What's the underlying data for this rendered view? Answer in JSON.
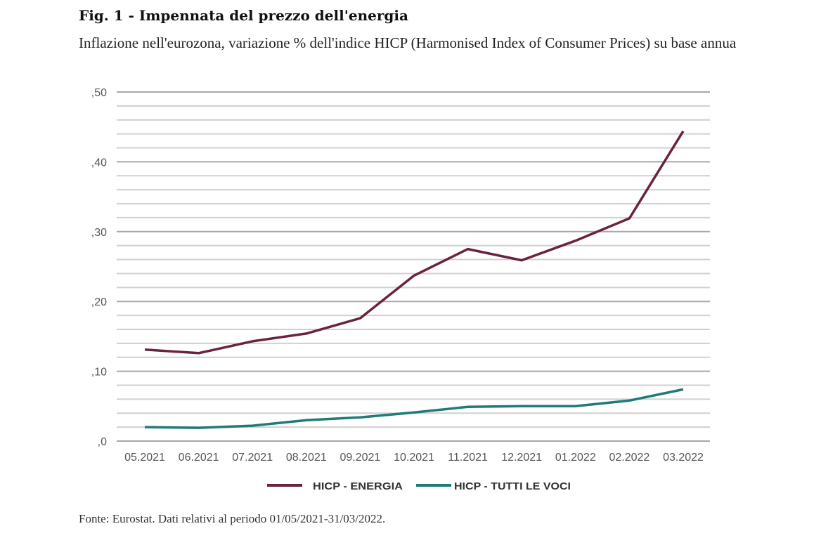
{
  "figure": {
    "title": "Fig. 1 - Impennata del prezzo dell'energia",
    "subtitle": "Inflazione nell'eurozona, variazione % dell'indice HICP (Harmonised Index of Consumer Prices) su base annua",
    "source": "Fonte: Eurostat. Dati relativi al periodo 01/05/2021-31/03/2022."
  },
  "chart_data": {
    "type": "line",
    "title": "Fig. 1 - Impennata del prezzo dell'energia",
    "xlabel": "",
    "ylabel": "",
    "x": [
      "05.2021",
      "06.2021",
      "07.2021",
      "08.2021",
      "09.2021",
      "10.2021",
      "11.2021",
      "12.2021",
      "01.2022",
      "02.2022",
      "03.2022"
    ],
    "ylim": [
      0,
      0.5
    ],
    "yticks": [
      0,
      0.1,
      0.2,
      0.3,
      0.4,
      0.5
    ],
    "ytick_labels": [
      ",0",
      ",10",
      ",20",
      ",30",
      ",40",
      ",50"
    ],
    "minor_grid_step": 0.02,
    "grid": true,
    "legend_position": "bottom-center",
    "series": [
      {
        "name": "HICP - ENERGIA",
        "color": "#6b2241",
        "values": [
          0.131,
          0.126,
          0.143,
          0.154,
          0.176,
          0.237,
          0.275,
          0.259,
          0.287,
          0.319,
          0.444
        ]
      },
      {
        "name": "HICP - TUTTI LE VOCI",
        "color": "#1f7a78",
        "values": [
          0.02,
          0.019,
          0.022,
          0.03,
          0.034,
          0.041,
          0.049,
          0.05,
          0.05,
          0.058,
          0.074
        ]
      }
    ]
  }
}
